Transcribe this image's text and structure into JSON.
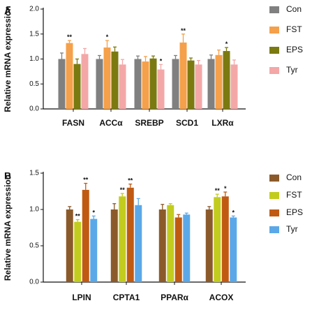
{
  "chart_data": [
    {
      "type": "bar",
      "panel_label": "A",
      "ylabel": "Relative mRNA expression",
      "ylim": [
        0,
        2.0
      ],
      "yticks": [
        "0.0",
        "0.5",
        "1.0",
        "1.5",
        "2.0"
      ],
      "categories": [
        "FASN",
        "ACCα",
        "SREBP",
        "SCD1",
        "LXRα"
      ],
      "legend_position": "right",
      "series": [
        {
          "name": "Con",
          "color": "#808080",
          "values": [
            1.0,
            1.0,
            1.0,
            1.0,
            1.0
          ],
          "errors": [
            0.12,
            0.07,
            0.06,
            0.07,
            0.08
          ],
          "sig": [
            "",
            "",
            "",
            "",
            ""
          ]
        },
        {
          "name": "FST",
          "color": "#F5A04A",
          "values": [
            1.32,
            1.23,
            0.95,
            1.33,
            1.08
          ],
          "errors": [
            0.05,
            0.14,
            0.1,
            0.17,
            0.1
          ],
          "sig": [
            "**",
            "*",
            "",
            "**",
            ""
          ]
        },
        {
          "name": "EPS",
          "color": "#7A7A10",
          "values": [
            0.9,
            1.15,
            1.01,
            0.97,
            1.16
          ],
          "errors": [
            0.1,
            0.09,
            0.05,
            0.05,
            0.07
          ],
          "sig": [
            "",
            "",
            "",
            "",
            "*"
          ]
        },
        {
          "name": "Tyr",
          "color": "#F4A7A7",
          "values": [
            1.1,
            0.89,
            0.79,
            0.89,
            0.89
          ],
          "errors": [
            0.11,
            0.1,
            0.1,
            0.08,
            0.09
          ],
          "sig": [
            "",
            "",
            "*",
            "",
            ""
          ]
        }
      ]
    },
    {
      "type": "bar",
      "panel_label": "B",
      "ylabel": "Relative mRNA expression",
      "ylim": [
        0,
        1.5
      ],
      "yticks": [
        "0.0",
        "0.5",
        "1.0",
        "1.5"
      ],
      "categories": [
        "LPIN",
        "CPTA1",
        "PPARα",
        "ACOX"
      ],
      "legend_position": "right",
      "series": [
        {
          "name": "Con",
          "color": "#8B5A2B",
          "values": [
            1.0,
            1.0,
            1.0,
            1.0
          ],
          "errors": [
            0.04,
            0.08,
            0.07,
            0.04
          ],
          "sig": [
            "",
            "",
            "",
            ""
          ]
        },
        {
          "name": "FST",
          "color": "#C2CC1E",
          "values": [
            0.83,
            1.18,
            1.06,
            1.17
          ],
          "errors": [
            0.03,
            0.04,
            0.02,
            0.04
          ],
          "sig": [
            "**",
            "**",
            "",
            "**"
          ]
        },
        {
          "name": "EPS",
          "color": "#C05A12",
          "values": [
            1.27,
            1.3,
            0.89,
            1.18
          ],
          "errors": [
            0.09,
            0.05,
            0.04,
            0.06
          ],
          "sig": [
            "**",
            "**",
            "",
            "*"
          ]
        },
        {
          "name": "Tyr",
          "color": "#5BA8E8",
          "values": [
            0.87,
            1.06,
            0.93,
            0.89
          ],
          "errors": [
            0.04,
            0.09,
            0.02,
            0.02
          ],
          "sig": [
            "*",
            "",
            "",
            "*"
          ]
        }
      ]
    }
  ]
}
